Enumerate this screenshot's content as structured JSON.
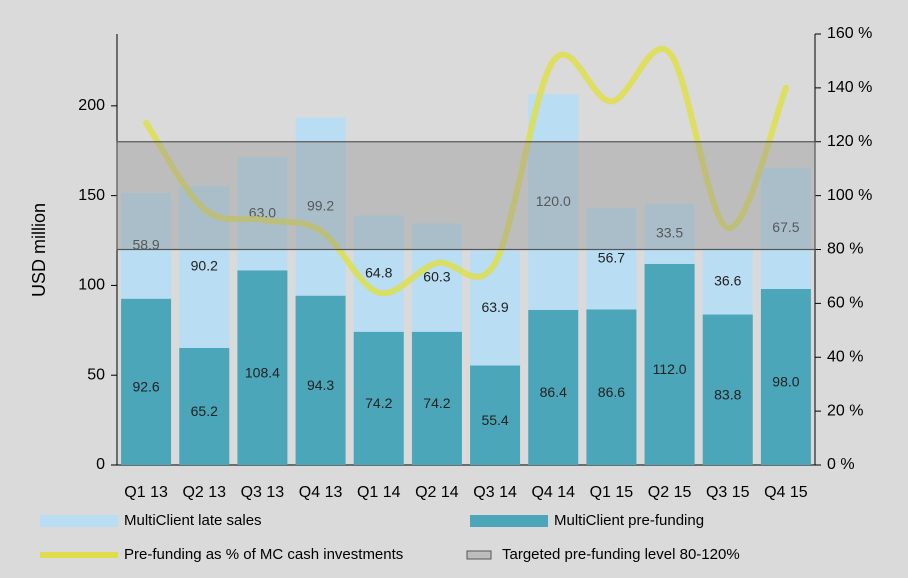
{
  "chart_data": {
    "type": "bar",
    "ylabel": "USD million",
    "categories": [
      "Q1 13",
      "Q2 13",
      "Q3 13",
      "Q4 13",
      "Q1 14",
      "Q2 14",
      "Q3 14",
      "Q4 14",
      "Q1 15",
      "Q2 15",
      "Q3 15",
      "Q4 15"
    ],
    "series": [
      {
        "name": "MultiClient pre-funding",
        "color": "#4ba6b9",
        "type": "bar",
        "values": [
          92.6,
          65.2,
          108.4,
          94.3,
          74.2,
          74.2,
          55.4,
          86.4,
          86.6,
          112.0,
          83.8,
          98.0
        ],
        "value_labels": [
          "92.6",
          "65.2",
          "108.4",
          "94.3",
          "74.2",
          "74.2",
          "55.4",
          "86.4",
          "86.6",
          "112.0",
          "83.8",
          "98.0"
        ]
      },
      {
        "name": "MultiClient late sales",
        "color": "#b9ddf3",
        "type": "bar",
        "values": [
          58.9,
          90.2,
          63.0,
          99.2,
          64.8,
          60.3,
          63.9,
          120.0,
          56.7,
          33.5,
          36.6,
          67.5
        ],
        "value_labels": [
          "58.9",
          "90.2",
          "63.0",
          "99.2",
          "64.8",
          "60.3",
          "63.9",
          "120.0",
          "56.7",
          "33.5",
          "36.6",
          "67.5"
        ]
      },
      {
        "name": "Pre-funding as % of MC cash investments",
        "color": "#dede4a",
        "type": "line",
        "axis": "y2",
        "values": [
          127,
          95,
          91,
          87,
          64,
          75,
          75,
          150,
          135,
          153,
          88,
          140
        ]
      }
    ],
    "target_band": {
      "name": "Targeted pre-funding level 80-120%",
      "range": [
        80,
        120
      ],
      "color": "#9a9a9a"
    },
    "ylim": [
      0,
      240
    ],
    "yticks": [
      0,
      50,
      100,
      150,
      200
    ],
    "y2lim": [
      0,
      160
    ],
    "y2ticks": [
      {
        "value": 0,
        "label": "0 %"
      },
      {
        "value": 20,
        "label": "20 %"
      },
      {
        "value": 40,
        "label": "40 %"
      },
      {
        "value": 60,
        "label": "60 %"
      },
      {
        "value": 80,
        "label": "80 %"
      },
      {
        "value": 100,
        "label": "100 %"
      },
      {
        "value": 120,
        "label": "120 %"
      },
      {
        "value": 140,
        "label": "140 %"
      },
      {
        "value": 160,
        "label": "160 %"
      }
    ],
    "grid": false
  }
}
